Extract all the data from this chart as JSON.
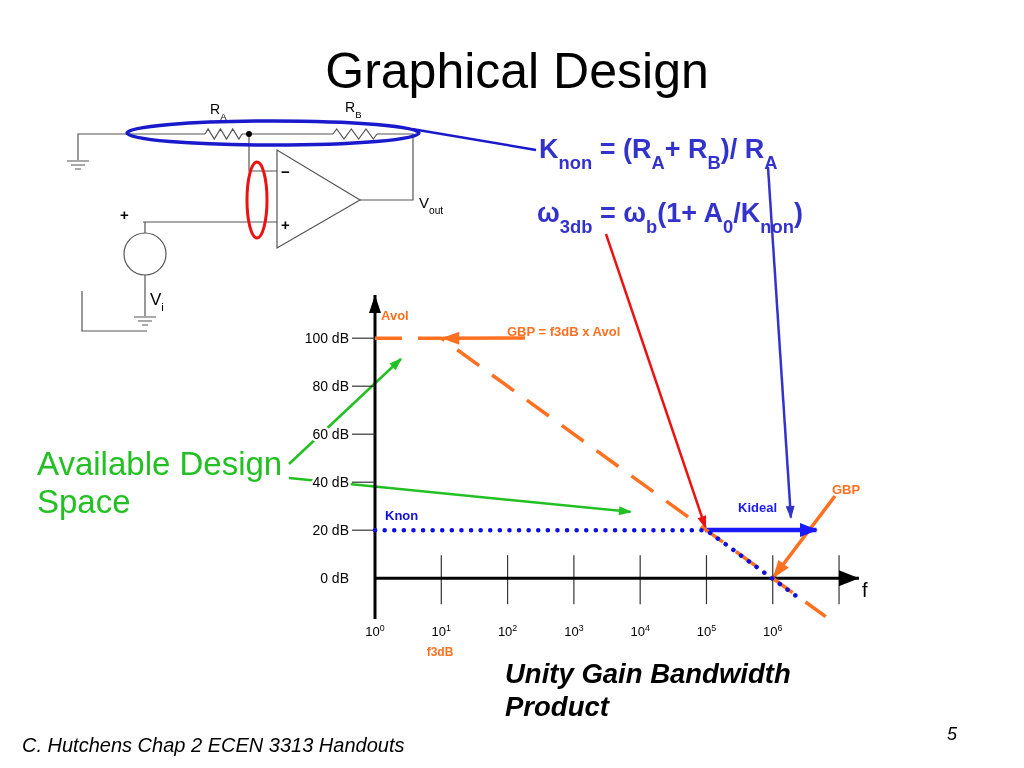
{
  "chart_data": {
    "type": "line",
    "title": "Graphical Design",
    "xlabel": "f",
    "log": "x",
    "xlim": [
      1,
      20000000
    ],
    "ylim": [
      -17,
      118
    ],
    "xticks": [
      {
        "value": 1,
        "label": "10$^{0}$"
      },
      {
        "value": 10,
        "label": "10$^{1}$"
      },
      {
        "value": 100,
        "label": "10$^{2}$"
      },
      {
        "value": 1000,
        "label": "10$^{3}$"
      },
      {
        "value": 10000,
        "label": "10$^{4}$"
      },
      {
        "value": 100000,
        "label": "10$^{5}$"
      },
      {
        "value": 1000000,
        "label": "10$^{6}$"
      }
    ],
    "yticks": [
      {
        "value": 0,
        "label": "0 dB"
      },
      {
        "value": 20,
        "label": "20 dB"
      },
      {
        "value": 40,
        "label": "40 dB"
      },
      {
        "value": 60,
        "label": "60 dB"
      },
      {
        "value": 80,
        "label": "80 dB"
      },
      {
        "value": 100,
        "label": "100 dB"
      }
    ],
    "series": [
      {
        "name": "Avol",
        "color": "#ff7020",
        "line_style": "dashed",
        "x": [
          1,
          10,
          6300000
        ],
        "values": [
          100,
          100,
          -16
        ]
      },
      {
        "name": "Knon",
        "color": "#1010e0",
        "line_style": "dotted",
        "x": [
          1,
          100000,
          2700000
        ],
        "values": [
          20,
          20,
          -9
        ]
      }
    ],
    "annotations": [
      {
        "text": "GBP = f3dB x Avol",
        "x": 10,
        "y": 100
      },
      {
        "text": "GBP",
        "x": 1000000,
        "y": 0
      },
      "K$_{non}$ = (R$_{A}$+ R$_{B}$)/ R$_{A}$",
      "ω$_{3db}$ = ω$_{b}$(1+ A$_{0}$/K$_{non}$)",
      "f3dB",
      "Available Design Space",
      "Unity Gain Bandwidth Product",
      "C. Hutchens Chap 2 ECEN 3313 Handouts",
      "5",
      "R$_{A}$",
      "R$_{B}$",
      "V$_{out}$",
      "V$_{i}$",
      "+",
      "−",
      "+",
      "Kideal"
    ]
  }
}
